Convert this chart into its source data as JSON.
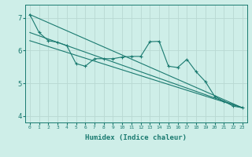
{
  "title": "",
  "xlabel": "Humidex (Indice chaleur)",
  "ylabel": "",
  "xlim": [
    -0.5,
    23.5
  ],
  "ylim": [
    3.8,
    7.4
  ],
  "yticks": [
    4,
    5,
    6,
    7
  ],
  "xticks": [
    0,
    1,
    2,
    3,
    4,
    5,
    6,
    7,
    8,
    9,
    10,
    11,
    12,
    13,
    14,
    15,
    16,
    17,
    18,
    19,
    20,
    21,
    22,
    23
  ],
  "bg_color": "#ceeee8",
  "grid_color": "#b8d8d2",
  "line_color": "#1a7a70",
  "lines": [
    {
      "x": [
        0,
        1,
        2,
        3,
        4,
        5,
        6,
        7,
        8,
        9,
        10,
        11,
        12,
        13,
        14,
        15,
        16,
        17,
        18,
        19,
        20,
        21,
        22,
        23
      ],
      "y": [
        7.1,
        6.55,
        6.3,
        6.25,
        6.15,
        5.6,
        5.52,
        5.75,
        5.75,
        5.75,
        5.8,
        5.82,
        5.82,
        6.27,
        6.28,
        5.52,
        5.48,
        5.73,
        5.35,
        5.05,
        4.6,
        4.45,
        4.3,
        4.25
      ],
      "marker": "+"
    },
    {
      "x": [
        0,
        23
      ],
      "y": [
        7.1,
        4.25
      ],
      "marker": null
    },
    {
      "x": [
        0,
        23
      ],
      "y": [
        6.55,
        4.25
      ],
      "marker": null
    },
    {
      "x": [
        0,
        23
      ],
      "y": [
        6.3,
        4.25
      ],
      "marker": null
    }
  ]
}
